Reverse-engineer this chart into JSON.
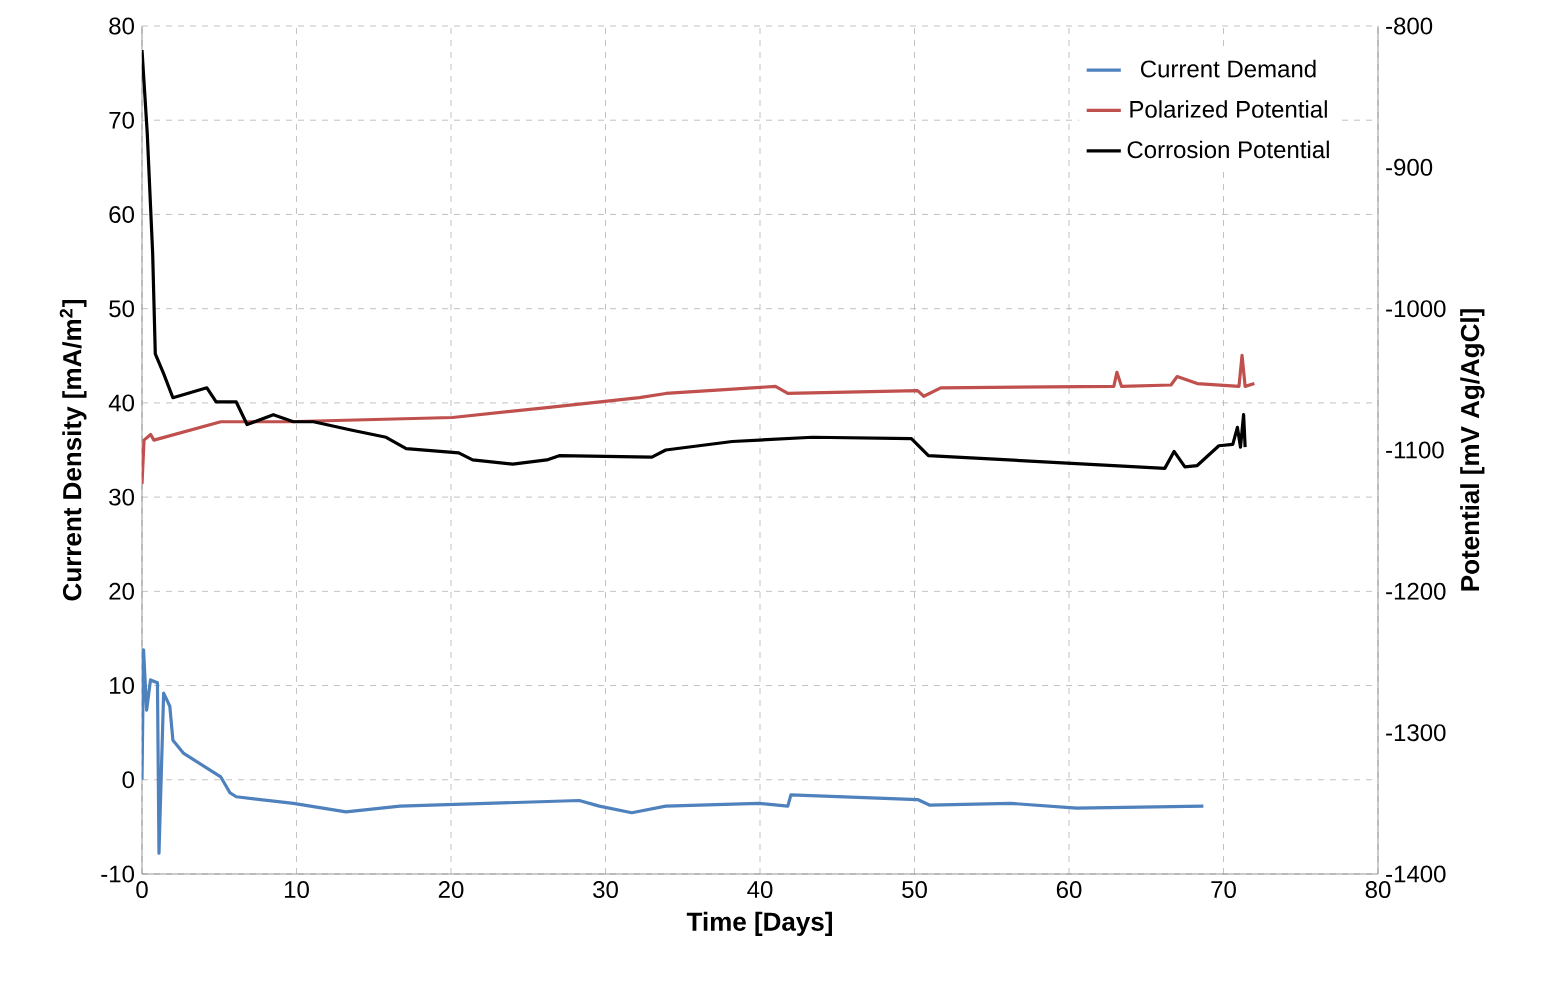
{
  "chart_data": {
    "type": "line",
    "xlabel": "Time [Days]",
    "ylabel": "Current Density [mA/m$^{2}$]",
    "y2label": "Potential [mV Ag/AgCl]",
    "xlim": [
      0,
      80
    ],
    "xticks": [
      0,
      10,
      20,
      30,
      40,
      50,
      60,
      70,
      80
    ],
    "ylim": [
      -10,
      80
    ],
    "yticks": [
      -10,
      0,
      10,
      20,
      30,
      40,
      50,
      60,
      70,
      80
    ],
    "y2lim": [
      -1400,
      -800
    ],
    "y2ticks": [
      -1400,
      -1300,
      -1200,
      -1100,
      -1000,
      -900,
      -800
    ],
    "grid": true,
    "legend": "top right",
    "marker": "none",
    "line_style": "solid",
    "series": [
      {
        "name": "Current Demand",
        "color": "#4f81bd",
        "x": [
          0,
          0.1,
          0.3,
          0.55,
          1.0,
          1.1,
          1.4,
          1.8,
          2.0,
          2.7,
          5.1,
          5.7,
          6.1,
          9.8,
          13.2,
          16.7,
          28.3,
          29.6,
          31.7,
          33.9,
          39.9,
          41.8,
          42.0,
          50.2,
          51.0,
          56.2,
          60.5,
          68.7
        ],
        "values": [
          0,
          13.8,
          7.4,
          10.6,
          10.3,
          -7.8,
          9.2,
          7.8,
          4.2,
          2.8,
          0.3,
          -1.4,
          -1.8,
          -2.5,
          -3.4,
          -2.8,
          -2.2,
          -2.8,
          -3.5,
          -2.8,
          -2.5,
          -2.8,
          -1.6,
          -2.1,
          -2.7,
          -2.5,
          -3.0,
          -2.8
        ]
      },
      {
        "name": "Polarized Potential",
        "color": "#c0504d",
        "axis": "y2",
        "x": [
          0,
          0.13,
          0.56,
          0.77,
          5.1,
          9.4,
          20.1,
          26.2,
          32.2,
          33.9,
          41.0,
          41.8,
          50.2,
          50.6,
          51.7,
          62.9,
          63.1,
          63.4,
          66.6,
          67.0,
          68.3,
          71.0,
          71.2,
          71.4,
          72.0
        ],
        "values": [
          -1124,
          -1093,
          -1089,
          -1093,
          -1080,
          -1080,
          -1077,
          -1070,
          -1063,
          -1060,
          -1055,
          -1060,
          -1058,
          -1062,
          -1056,
          -1055,
          -1045,
          -1055,
          -1054,
          -1048,
          -1053,
          -1055,
          -1033,
          -1055,
          -1053
        ]
      },
      {
        "name": "Corrosion Potential",
        "color": "#000000",
        "axis": "y2",
        "x": [
          0,
          0.34,
          0.69,
          0.86,
          1.4,
          2.0,
          4.2,
          4.8,
          6.1,
          6.8,
          8.5,
          9.8,
          11.1,
          13.6,
          15.8,
          17.1,
          20.5,
          21.4,
          24.0,
          26.2,
          27.0,
          33.0,
          33.9,
          38.2,
          43.4,
          49.8,
          50.9,
          66.2,
          66.8,
          67.5,
          68.3,
          69.7,
          70.6,
          70.9,
          71.1,
          71.3,
          71.4
        ],
        "values": [
          -817,
          -876,
          -961,
          -1032,
          -1046,
          -1063,
          -1056,
          -1066,
          -1066,
          -1082,
          -1075,
          -1080,
          -1080,
          -1086,
          -1091,
          -1099,
          -1102,
          -1107,
          -1110,
          -1107,
          -1104,
          -1105,
          -1100,
          -1094,
          -1091,
          -1092,
          -1104,
          -1113,
          -1101,
          -1112,
          -1111,
          -1097,
          -1096,
          -1084,
          -1098,
          -1075,
          -1098
        ]
      }
    ]
  }
}
